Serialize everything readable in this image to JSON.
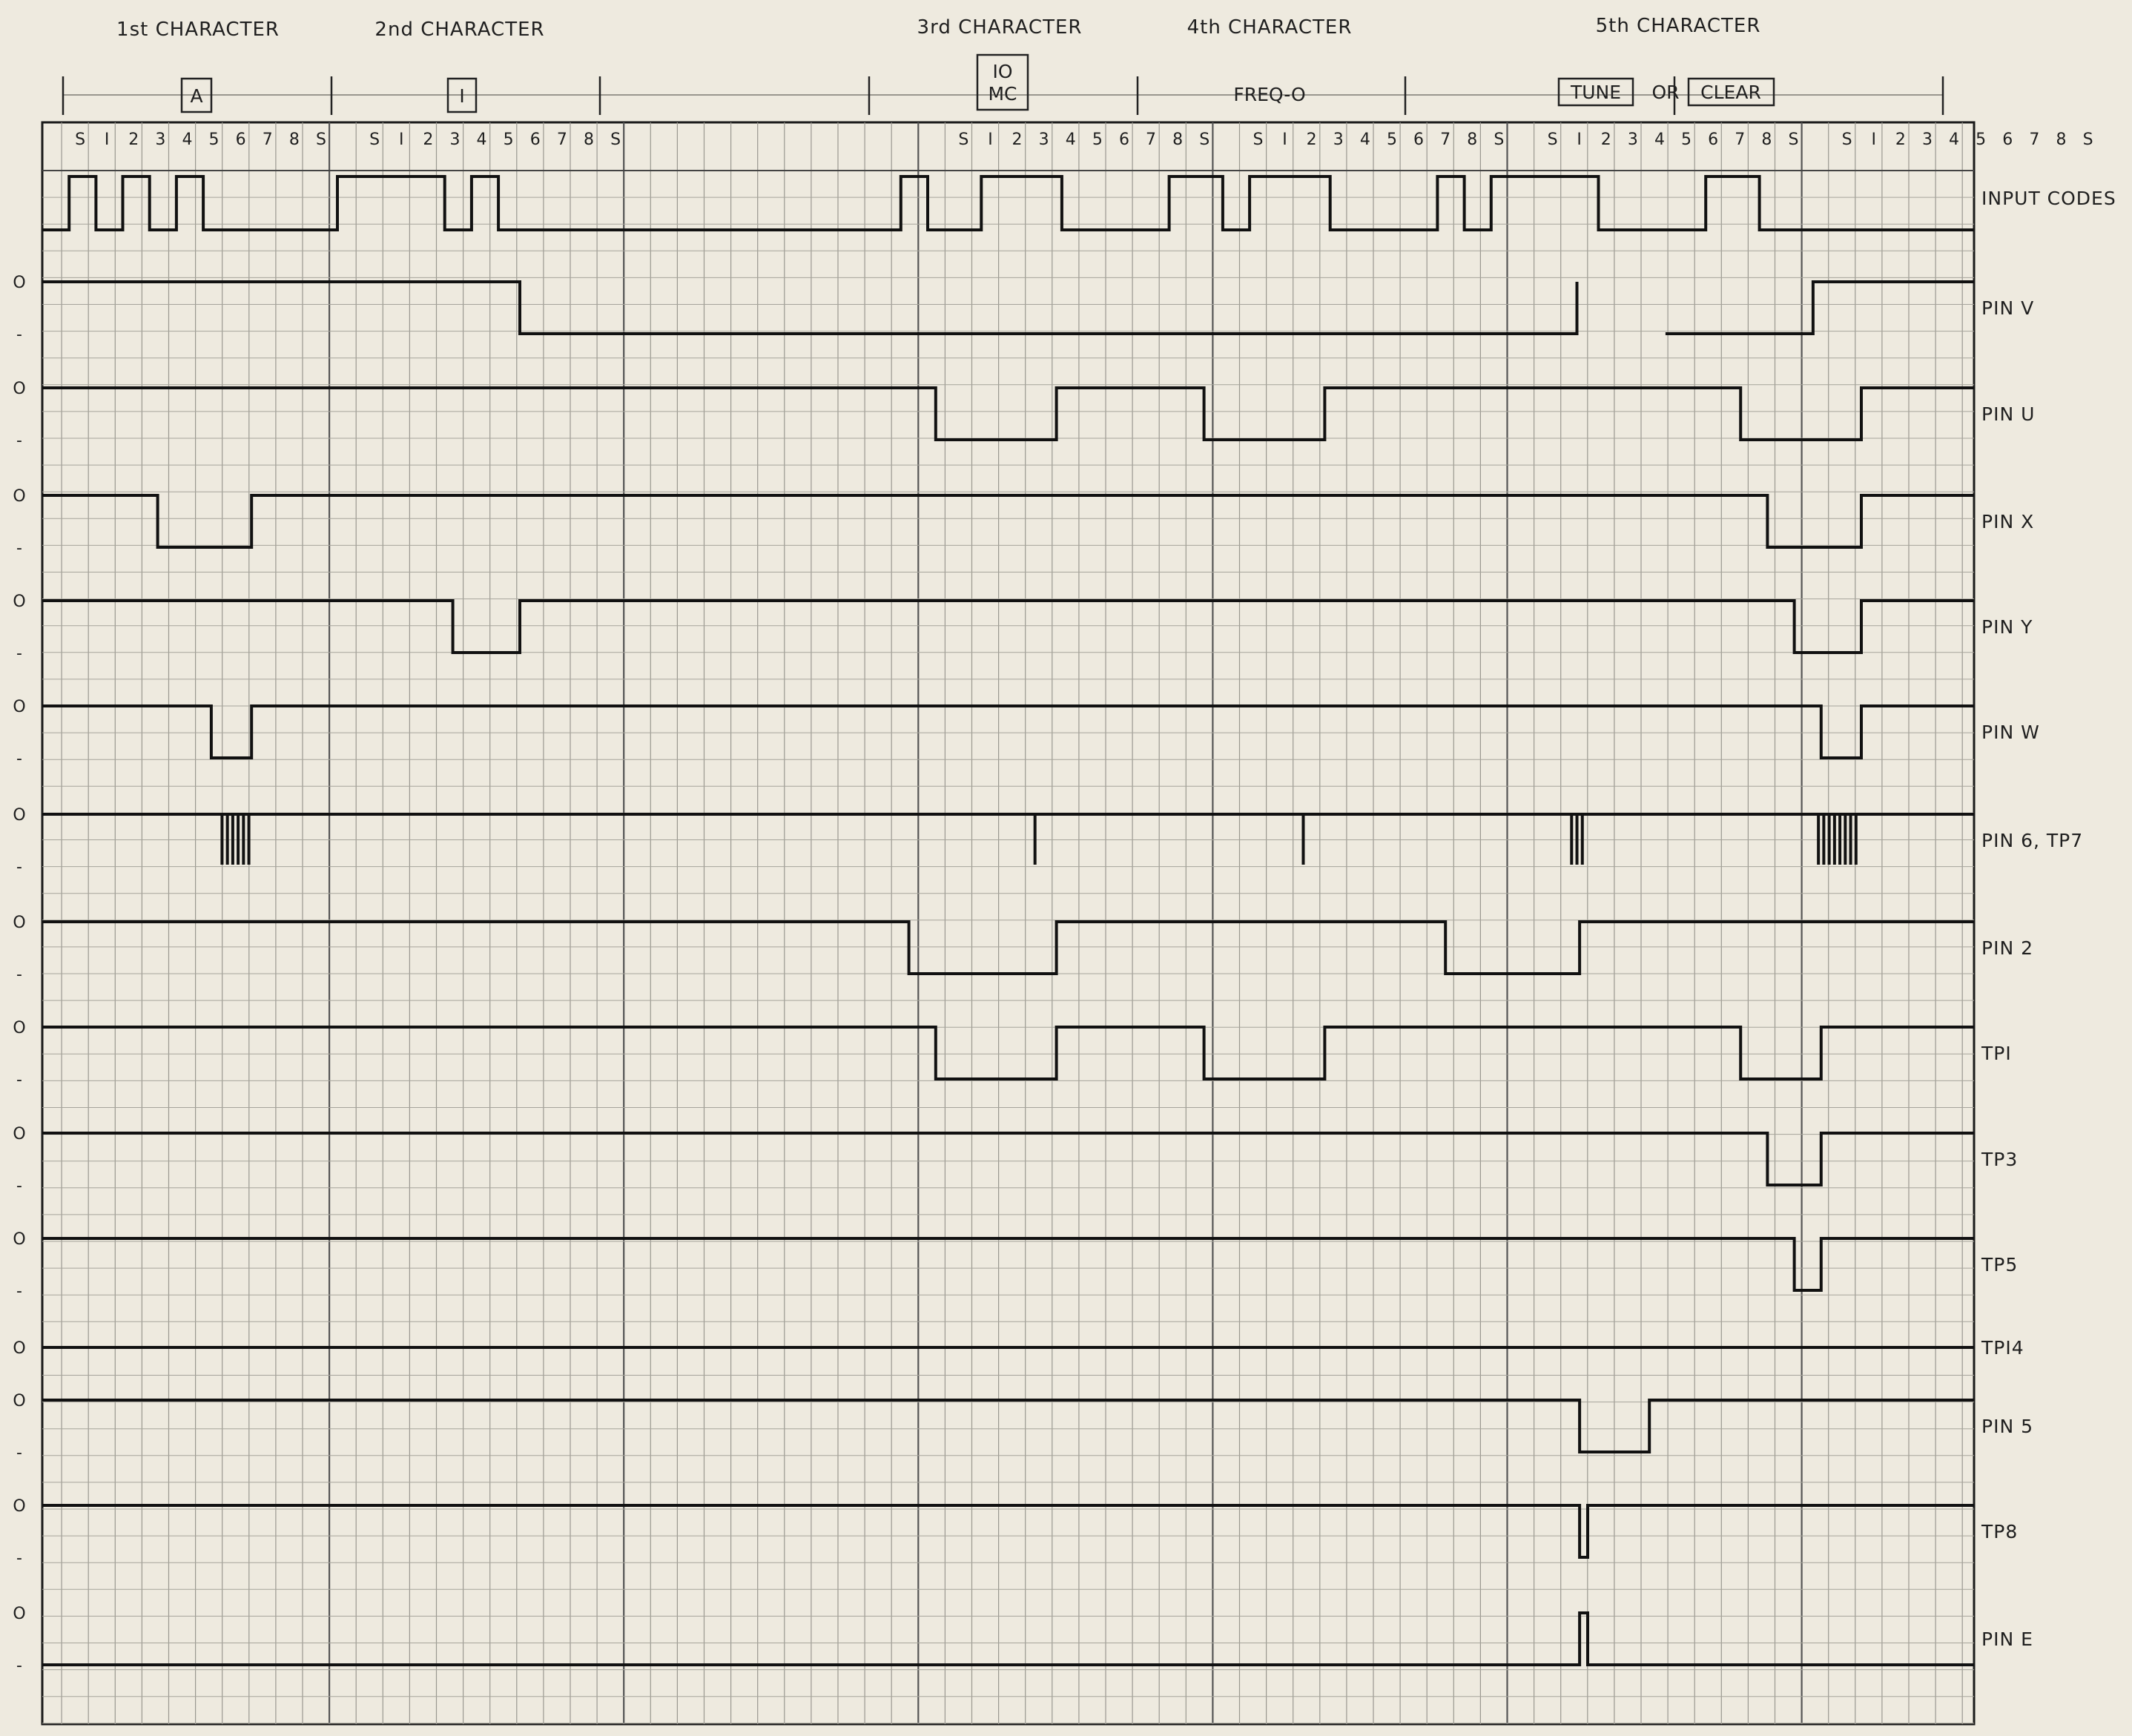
{
  "headers": [
    {
      "id": "ch1",
      "label": "1st CHARACTER"
    },
    {
      "id": "ch2",
      "label": "2nd CHARACTER"
    },
    {
      "id": "ch3",
      "label": "3rd CHARACTER"
    },
    {
      "id": "ch4",
      "label": "4th CHARACTER"
    },
    {
      "id": "ch5",
      "label": "5th CHARACTER"
    }
  ],
  "char_boxes": {
    "ch1": "A",
    "ch2": "I",
    "ch3_line1": "IO",
    "ch3_line2": "MC",
    "ch4": "FREQ-O",
    "ch5_a": "TUNE",
    "ch5_or": "OR",
    "ch5_b": "CLEAR"
  },
  "slot_labels": [
    [
      "S",
      "I",
      "2",
      "3",
      "4",
      "5",
      "6",
      "7",
      "8",
      "S"
    ],
    [
      "S",
      "I",
      "2",
      "3",
      "4",
      "5",
      "6",
      "7",
      "8",
      "S"
    ],
    [],
    [
      "S",
      "I",
      "2",
      "3",
      "4",
      "5",
      "6",
      "7",
      "8",
      "S"
    ],
    [
      "S",
      "I",
      "2",
      "3",
      "4",
      "5",
      "6",
      "7",
      "8",
      "S"
    ],
    [
      "S",
      "I",
      "2",
      "3",
      "4",
      "5",
      "6",
      "7",
      "8",
      "S"
    ],
    [
      "S",
      "I",
      "2",
      "3",
      "4",
      "5",
      "6",
      "7",
      "8",
      "S"
    ]
  ],
  "level_high": "O",
  "level_low": "-",
  "signals": [
    {
      "id": "input-codes",
      "label": "INPUT CODES",
      "levels": false,
      "segments": [
        [
          0,
          1
        ],
        [
          1,
          2
        ],
        [
          2,
          1
        ],
        [
          3,
          2
        ],
        [
          4,
          1
        ],
        [
          5,
          2
        ],
        [
          6,
          1
        ],
        [
          11,
          2
        ],
        [
          15,
          1
        ],
        [
          16,
          2
        ],
        [
          17,
          1
        ],
        [
          32,
          2
        ],
        [
          33,
          1
        ],
        [
          35,
          2
        ],
        [
          38,
          1
        ],
        [
          42,
          2
        ],
        [
          44,
          1
        ],
        [
          45,
          2
        ],
        [
          48,
          1
        ],
        [
          52,
          2
        ],
        [
          53,
          1
        ],
        [
          54,
          2
        ],
        [
          58,
          1
        ],
        [
          62,
          2
        ],
        [
          64,
          1
        ],
        [
          72,
          1
        ]
      ]
    },
    {
      "id": "pin-v",
      "label": "PIN V",
      "segments": [
        [
          0,
          1
        ],
        [
          17.8,
          0
        ],
        [
          57.2,
          1
        ],
        [
          60.5,
          null
        ],
        [
          60.5,
          0
        ],
        [
          66,
          1
        ],
        [
          72,
          1
        ]
      ]
    },
    {
      "id": "pin-u",
      "label": "PIN U",
      "segments": [
        [
          0,
          1
        ],
        [
          33.3,
          0
        ],
        [
          37.8,
          1
        ],
        [
          43.3,
          0
        ],
        [
          47.8,
          1
        ],
        [
          63.3,
          0
        ],
        [
          67.8,
          1
        ],
        [
          72,
          1
        ]
      ]
    },
    {
      "id": "pin-x",
      "label": "PIN X",
      "segments": [
        [
          0,
          1
        ],
        [
          4.3,
          0
        ],
        [
          7.8,
          1
        ],
        [
          64.3,
          0
        ],
        [
          67.8,
          1
        ],
        [
          72,
          1
        ]
      ]
    },
    {
      "id": "pin-y",
      "label": "PIN Y",
      "segments": [
        [
          0,
          1
        ],
        [
          15.3,
          0
        ],
        [
          17.8,
          1
        ],
        [
          65.3,
          0
        ],
        [
          67.8,
          1
        ],
        [
          72,
          1
        ]
      ]
    },
    {
      "id": "pin-w",
      "label": "PIN W",
      "segments": [
        [
          0,
          1
        ],
        [
          6.3,
          0
        ],
        [
          7.8,
          1
        ],
        [
          66.3,
          0
        ],
        [
          67.8,
          1
        ],
        [
          72,
          1
        ]
      ]
    },
    {
      "id": "pin-6-tp7",
      "label": "PIN 6, TP7",
      "segments": [
        [
          0,
          1
        ],
        [
          72,
          1
        ]
      ],
      "spikes": [
        6.7,
        6.9,
        7.1,
        7.3,
        7.5,
        7.7,
        37.0,
        47.0,
        57.0,
        57.2,
        57.4,
        66.2,
        66.4,
        66.6,
        66.8,
        67.0,
        67.2,
        67.4,
        67.6
      ]
    },
    {
      "id": "pin-2",
      "label": "PIN 2",
      "segments": [
        [
          0,
          1
        ],
        [
          32.3,
          0
        ],
        [
          37.8,
          1
        ],
        [
          52.3,
          0
        ],
        [
          57.3,
          1
        ],
        [
          72,
          1
        ]
      ]
    },
    {
      "id": "tp1",
      "label": "TPI",
      "segments": [
        [
          0,
          1
        ],
        [
          33.3,
          0
        ],
        [
          37.8,
          1
        ],
        [
          43.3,
          0
        ],
        [
          47.8,
          1
        ],
        [
          63.3,
          0
        ],
        [
          66.3,
          1
        ],
        [
          72,
          1
        ]
      ]
    },
    {
      "id": "tp3",
      "label": "TP3",
      "segments": [
        [
          0,
          1
        ],
        [
          64.3,
          0
        ],
        [
          66.3,
          1
        ],
        [
          72,
          1
        ]
      ]
    },
    {
      "id": "tp5",
      "label": "TP5",
      "segments": [
        [
          0,
          1
        ],
        [
          65.3,
          0
        ],
        [
          66.3,
          1
        ],
        [
          72,
          1
        ]
      ]
    },
    {
      "id": "tp14",
      "label": "TPI4",
      "segments": [
        [
          0,
          1
        ],
        [
          72,
          1
        ]
      ]
    },
    {
      "id": "pin-5",
      "label": "PIN 5",
      "segments": [
        [
          0,
          1
        ],
        [
          57.3,
          0
        ],
        [
          59.9,
          1
        ],
        [
          72,
          1
        ]
      ]
    },
    {
      "id": "tp8",
      "label": "TP8",
      "segments": [
        [
          0,
          1
        ],
        [
          57.3,
          0
        ],
        [
          57.6,
          1
        ],
        [
          72,
          1
        ]
      ]
    },
    {
      "id": "pin-e",
      "label": "PIN E",
      "segments": [
        [
          0,
          0
        ],
        [
          57.3,
          1
        ],
        [
          57.6,
          0
        ],
        [
          72,
          0
        ]
      ]
    }
  ]
}
